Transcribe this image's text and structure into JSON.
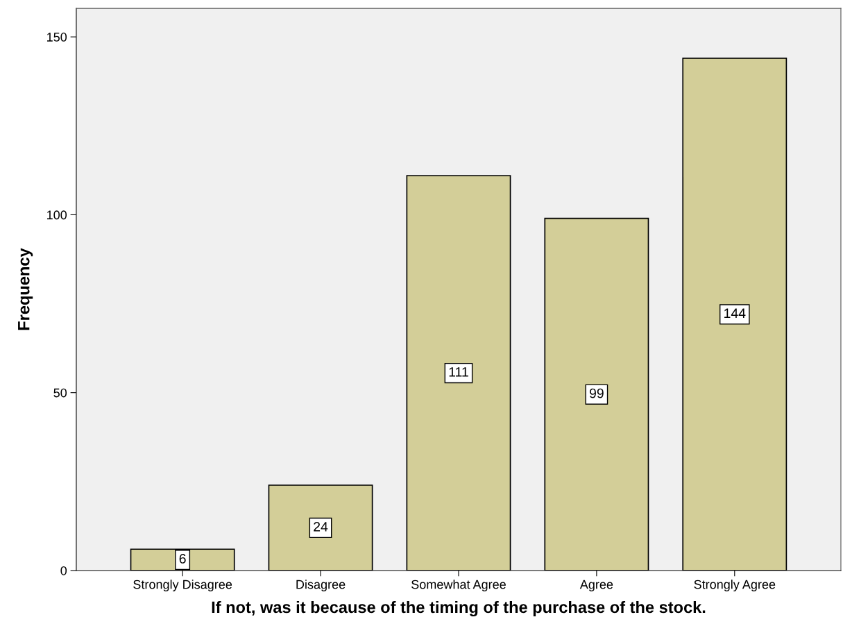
{
  "chart_data": {
    "type": "bar",
    "xlabel": "If not, was it because of the timing of the purchase of the stock.",
    "ylabel": "Frequency",
    "categories": [
      "Strongly Disagree",
      "Disagree",
      "Somewhat Agree",
      "Agree",
      "Strongly Agree"
    ],
    "values": [
      6,
      24,
      111,
      99,
      144
    ],
    "color": "#d3ce98",
    "ylim": [
      0,
      158
    ],
    "yticks": [
      0,
      50,
      100,
      150
    ],
    "grid": false,
    "data_labels": true
  }
}
